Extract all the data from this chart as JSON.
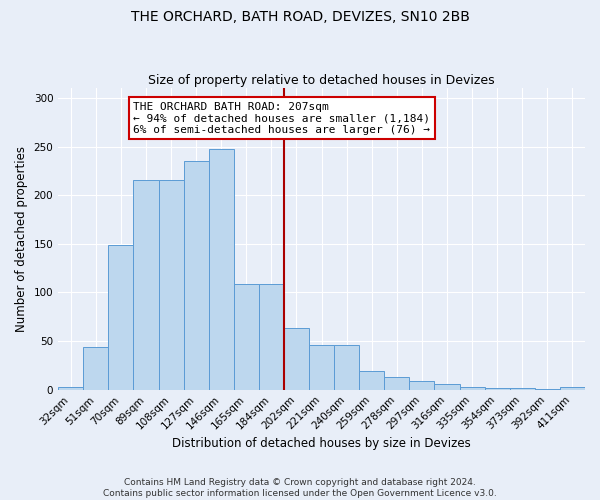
{
  "title": "THE ORCHARD, BATH ROAD, DEVIZES, SN10 2BB",
  "subtitle": "Size of property relative to detached houses in Devizes",
  "xlabel": "Distribution of detached houses by size in Devizes",
  "ylabel": "Number of detached properties",
  "categories": [
    "32sqm",
    "51sqm",
    "70sqm",
    "89sqm",
    "108sqm",
    "127sqm",
    "146sqm",
    "165sqm",
    "184sqm",
    "202sqm",
    "221sqm",
    "240sqm",
    "259sqm",
    "278sqm",
    "297sqm",
    "316sqm",
    "335sqm",
    "354sqm",
    "373sqm",
    "392sqm",
    "411sqm"
  ],
  "values": [
    3,
    44,
    149,
    216,
    216,
    235,
    247,
    109,
    109,
    63,
    46,
    46,
    19,
    13,
    9,
    6,
    3,
    2,
    2,
    1,
    3
  ],
  "bar_color": "#bdd7ee",
  "bar_edge_color": "#5b9bd5",
  "vline_color": "#aa0000",
  "vline_idx": 9,
  "annotation_text": "THE ORCHARD BATH ROAD: 207sqm\n← 94% of detached houses are smaller (1,184)\n6% of semi-detached houses are larger (76) →",
  "annotation_box_color": "#ffffff",
  "annotation_box_edge_color": "#cc0000",
  "ylim": [
    0,
    310
  ],
  "yticks": [
    0,
    50,
    100,
    150,
    200,
    250,
    300
  ],
  "background_color": "#e8eef8",
  "grid_color": "#ffffff",
  "footer_text": "Contains HM Land Registry data © Crown copyright and database right 2024.\nContains public sector information licensed under the Open Government Licence v3.0.",
  "title_fontsize": 10,
  "subtitle_fontsize": 9,
  "xlabel_fontsize": 8.5,
  "ylabel_fontsize": 8.5,
  "tick_fontsize": 7.5,
  "annotation_fontsize": 8,
  "footer_fontsize": 6.5
}
